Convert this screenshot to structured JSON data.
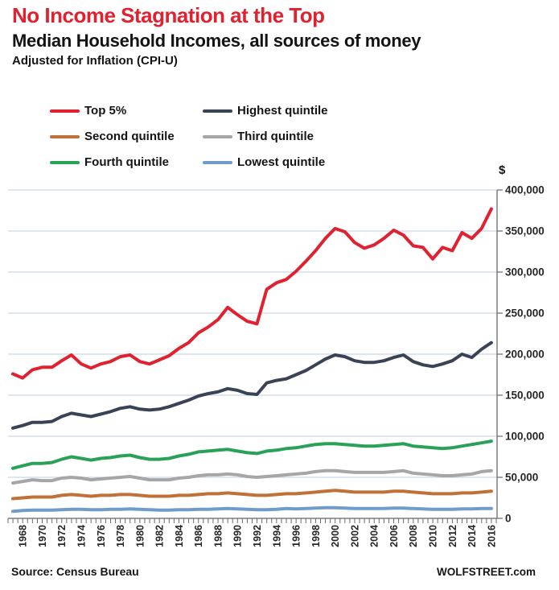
{
  "header": {
    "title": "No Income Stagnation at the Top",
    "subtitle": "Median Household Incomes, all sources of money",
    "note": "Adjusted for Inflation (CPI-U)"
  },
  "legend": {
    "items": [
      {
        "label": "Top 5%",
        "color": "#e02230",
        "series": "top5"
      },
      {
        "label": "Highest quintile",
        "color": "#3a4356",
        "series": "highest"
      },
      {
        "label": "Second quintile",
        "color": "#bf7137",
        "series": "second"
      },
      {
        "label": "Third quintile",
        "color": "#a6a6a6",
        "series": "third"
      },
      {
        "label": "Fourth quintile",
        "color": "#2aa158",
        "series": "fourth"
      },
      {
        "label": "Lowest quintile",
        "color": "#6f9ccb",
        "series": "lowest"
      }
    ]
  },
  "axes": {
    "y_unit": "$",
    "y_tick_labels": [
      "400,000",
      "350,000",
      "300,000",
      "250,000",
      "200,000",
      "150,000",
      "100,000",
      "50,000",
      "0"
    ],
    "y_min": 0,
    "y_max": 400000,
    "y_step": 50000,
    "x_tick_labels": [
      "1968",
      "1970",
      "1972",
      "1974",
      "1976",
      "1978",
      "1980",
      "1982",
      "1984",
      "1986",
      "1988",
      "1990",
      "1992",
      "1994",
      "1996",
      "1998",
      "2000",
      "2002",
      "2004",
      "2006",
      "2008",
      "2010",
      "2012",
      "2014",
      "2016"
    ]
  },
  "footer": {
    "source": "Source: Census Bureau",
    "brand": "WOLFSTREET.com"
  },
  "chart_data": {
    "type": "line",
    "title": "No Income Stagnation at the Top",
    "subtitle": "Median Household Incomes, all sources of money",
    "note": "Adjusted for Inflation (CPI-U)",
    "xlabel": "",
    "ylabel": "$",
    "ylim": [
      0,
      400000
    ],
    "grid": "horizontal",
    "legend_position": "top-left",
    "x": [
      1967,
      1968,
      1969,
      1970,
      1971,
      1972,
      1973,
      1974,
      1975,
      1976,
      1977,
      1978,
      1979,
      1980,
      1981,
      1982,
      1983,
      1984,
      1985,
      1986,
      1987,
      1988,
      1989,
      1990,
      1991,
      1992,
      1993,
      1994,
      1995,
      1996,
      1997,
      1998,
      1999,
      2000,
      2001,
      2002,
      2003,
      2004,
      2005,
      2006,
      2007,
      2008,
      2009,
      2010,
      2011,
      2012,
      2013,
      2014,
      2015,
      2016
    ],
    "series": [
      {
        "name": "Top 5%",
        "color": "#e02230",
        "values": [
          176000,
          171000,
          181000,
          184000,
          184000,
          192000,
          199000,
          188000,
          183000,
          188000,
          191000,
          197000,
          199000,
          191000,
          188000,
          193000,
          198000,
          207000,
          214000,
          226000,
          233000,
          242000,
          257000,
          248000,
          240000,
          237000,
          279000,
          287000,
          291000,
          301000,
          313000,
          326000,
          341000,
          353000,
          349000,
          336000,
          329000,
          333000,
          341000,
          351000,
          345000,
          332000,
          330000,
          316000,
          330000,
          326000,
          348000,
          341000,
          353000,
          377000
        ]
      },
      {
        "name": "Highest quintile",
        "color": "#3a4356",
        "values": [
          110000,
          113000,
          117000,
          117000,
          118000,
          124000,
          128000,
          126000,
          124000,
          127000,
          130000,
          134000,
          136000,
          133000,
          132000,
          133000,
          136000,
          140000,
          144000,
          149000,
          152000,
          154000,
          158000,
          156000,
          152000,
          151000,
          165000,
          168000,
          170000,
          175000,
          180000,
          187000,
          194000,
          199000,
          197000,
          192000,
          190000,
          190000,
          192000,
          196000,
          199000,
          191000,
          187000,
          185000,
          188000,
          192000,
          200000,
          196000,
          206000,
          214000
        ]
      },
      {
        "name": "Second quintile",
        "color": "#bf7137",
        "values": [
          24000,
          25000,
          26000,
          26000,
          26000,
          28000,
          29000,
          28000,
          27000,
          28000,
          28000,
          29000,
          29000,
          28000,
          27000,
          27000,
          27000,
          28000,
          28000,
          29000,
          30000,
          30000,
          31000,
          30000,
          29000,
          28000,
          28000,
          29000,
          30000,
          30000,
          31000,
          32000,
          33000,
          34000,
          33000,
          32000,
          32000,
          32000,
          32000,
          33000,
          33000,
          32000,
          31000,
          30000,
          30000,
          30000,
          31000,
          31000,
          32000,
          33000
        ]
      },
      {
        "name": "Third quintile",
        "color": "#a6a6a6",
        "values": [
          43000,
          45000,
          47000,
          46000,
          46000,
          49000,
          50000,
          49000,
          47000,
          48000,
          49000,
          50000,
          51000,
          49000,
          47000,
          47000,
          47000,
          49000,
          50000,
          52000,
          53000,
          53000,
          54000,
          53000,
          51000,
          50000,
          51000,
          52000,
          53000,
          54000,
          55000,
          57000,
          58000,
          58000,
          57000,
          56000,
          56000,
          56000,
          56000,
          57000,
          58000,
          55000,
          54000,
          53000,
          52000,
          52000,
          53000,
          54000,
          57000,
          58000
        ]
      },
      {
        "name": "Fourth quintile",
        "color": "#2aa158",
        "values": [
          61000,
          64000,
          67000,
          67000,
          68000,
          72000,
          75000,
          73000,
          71000,
          73000,
          74000,
          76000,
          77000,
          74000,
          72000,
          72000,
          73000,
          76000,
          78000,
          81000,
          82000,
          83000,
          84000,
          82000,
          80000,
          79000,
          82000,
          83000,
          85000,
          86000,
          88000,
          90000,
          91000,
          91000,
          90000,
          89000,
          88000,
          88000,
          89000,
          90000,
          91000,
          88000,
          87000,
          86000,
          85000,
          86000,
          88000,
          90000,
          92000,
          94000
        ]
      },
      {
        "name": "Lowest quintile",
        "color": "#6f9ccb",
        "values": [
          8500,
          9500,
          10000,
          10000,
          10000,
          10500,
          11000,
          11000,
          10500,
          10500,
          11000,
          11000,
          11500,
          11000,
          10500,
          10000,
          10000,
          10500,
          10500,
          11000,
          11000,
          11500,
          12000,
          11500,
          11000,
          10500,
          10500,
          11000,
          12000,
          11500,
          12000,
          12500,
          13000,
          13000,
          12500,
          12000,
          12000,
          12000,
          12000,
          12500,
          12500,
          12000,
          11500,
          11000,
          11000,
          11000,
          11500,
          11500,
          12000,
          12000
        ]
      }
    ]
  }
}
